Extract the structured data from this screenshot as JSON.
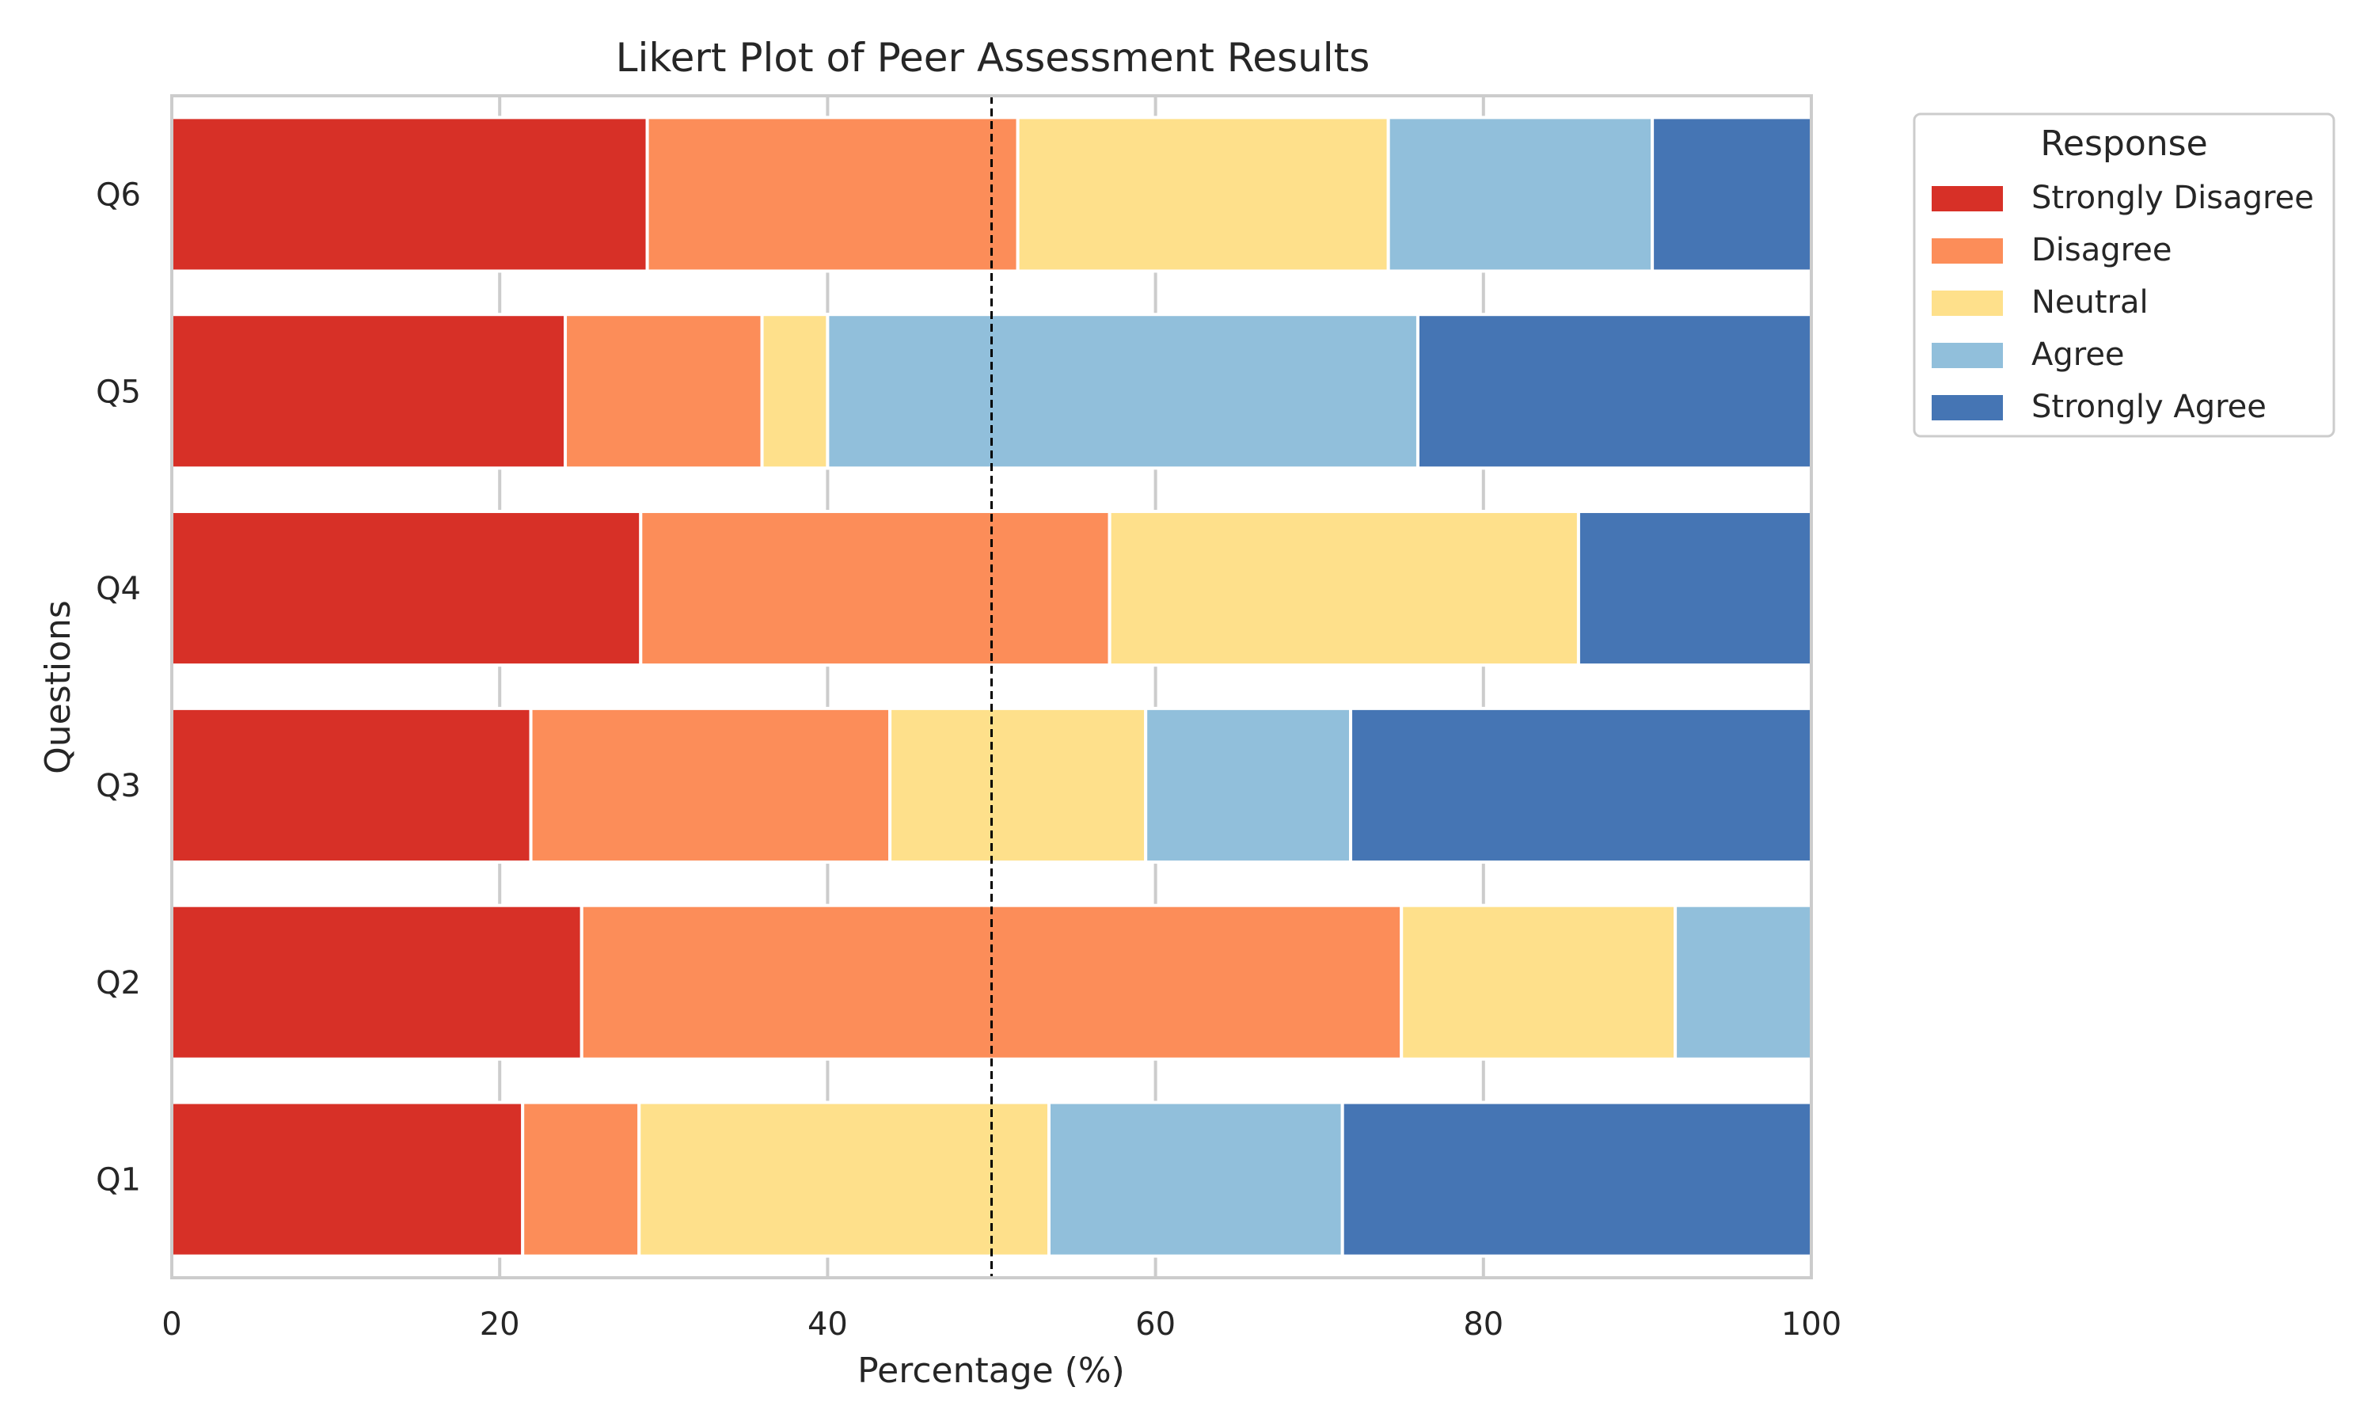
{
  "chart_data": {
    "type": "bar",
    "orientation": "horizontal",
    "stacked": true,
    "title": "Likert Plot of Peer Assessment Results",
    "xlabel": "Percentage (%)",
    "ylabel": "Questions",
    "xlim": [
      0,
      100
    ],
    "xticks": [
      "0",
      "20",
      "40",
      "60",
      "80",
      "100"
    ],
    "grid": true,
    "reference_line": {
      "x": 50,
      "style": "dashed"
    },
    "categories": [
      "Q1",
      "Q2",
      "Q3",
      "Q4",
      "Q5",
      "Q6"
    ],
    "series": [
      {
        "name": "Strongly Disagree",
        "color": "#d73027",
        "values": [
          21.4,
          25.0,
          21.9,
          28.6,
          24.0,
          29.0
        ]
      },
      {
        "name": "Disagree",
        "color": "#fc8d59",
        "values": [
          7.1,
          50.0,
          21.9,
          28.6,
          12.0,
          22.6
        ]
      },
      {
        "name": "Neutral",
        "color": "#fee08b",
        "values": [
          25.0,
          16.7,
          15.6,
          28.6,
          4.0,
          22.6
        ]
      },
      {
        "name": "Agree",
        "color": "#91bfdb",
        "values": [
          17.9,
          8.3,
          12.5,
          0.0,
          36.0,
          16.1
        ]
      },
      {
        "name": "Strongly Agree",
        "color": "#4575b4",
        "values": [
          28.6,
          0.0,
          28.1,
          14.2,
          24.0,
          9.7
        ]
      }
    ],
    "legend": {
      "title": "Response",
      "placement": "outside-top-right"
    }
  }
}
